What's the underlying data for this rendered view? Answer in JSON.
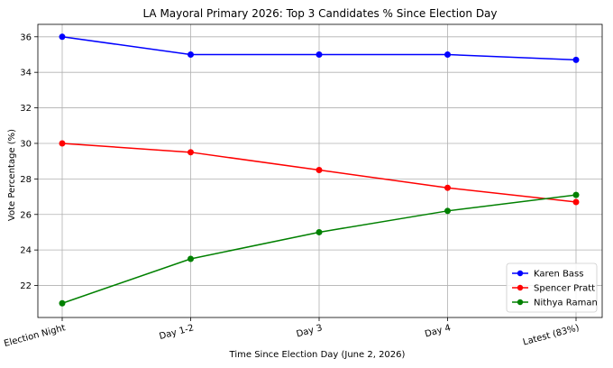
{
  "chart_data": {
    "type": "line",
    "title": "LA Mayoral Primary 2026: Top 3 Candidates % Since Election Day",
    "xlabel": "Time Since Election Day (June 2, 2026)",
    "ylabel": "Vote Percentage (%)",
    "categories": [
      "Election Night",
      "Day 1-2",
      "Day 3",
      "Day 4",
      "Latest (83%)"
    ],
    "ylim": [
      20.2,
      36.7
    ],
    "yticks": [
      22,
      24,
      26,
      28,
      30,
      32,
      34,
      36
    ],
    "grid": true,
    "legend_position": "bottom-right",
    "series": [
      {
        "name": "Karen Bass",
        "color": "#0000ff",
        "values": [
          36.0,
          35.0,
          35.0,
          35.0,
          34.7
        ]
      },
      {
        "name": "Spencer Pratt",
        "color": "#ff0000",
        "values": [
          30.0,
          29.5,
          28.5,
          27.5,
          26.7
        ]
      },
      {
        "name": "Nithya Raman",
        "color": "#008000",
        "values": [
          21.0,
          23.5,
          25.0,
          26.2,
          27.1
        ]
      }
    ]
  }
}
